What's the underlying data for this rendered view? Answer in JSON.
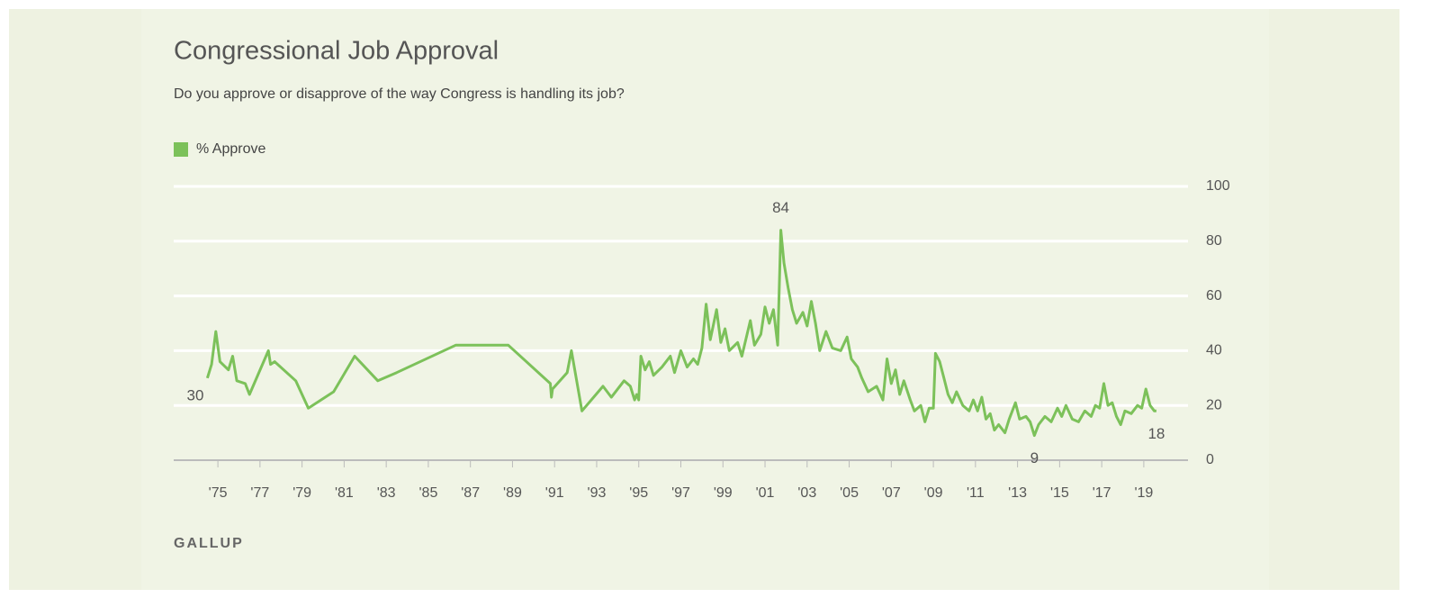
{
  "chart_data": {
    "type": "line",
    "title": "Congressional Job Approval",
    "subtitle": "Do you approve or disapprove of the way Congress is handling its job?",
    "source": "GALLUP",
    "legend": "top-left",
    "grid": true,
    "xlim": [
      1972.9,
      2021.1
    ],
    "ylim": [
      0,
      100
    ],
    "yticks": [
      0,
      20,
      40,
      60,
      80,
      100
    ],
    "xticks": [
      {
        "value": 1975,
        "label": "'75"
      },
      {
        "value": 1977,
        "label": "'77"
      },
      {
        "value": 1979,
        "label": "'79"
      },
      {
        "value": 1981,
        "label": "'81"
      },
      {
        "value": 1983,
        "label": "'83"
      },
      {
        "value": 1985,
        "label": "'85"
      },
      {
        "value": 1987,
        "label": "'87"
      },
      {
        "value": 1989,
        "label": "'89"
      },
      {
        "value": 1991,
        "label": "'91"
      },
      {
        "value": 1993,
        "label": "'93"
      },
      {
        "value": 1995,
        "label": "'95"
      },
      {
        "value": 1997,
        "label": "'97"
      },
      {
        "value": 1999,
        "label": "'99"
      },
      {
        "value": 2001,
        "label": "'01"
      },
      {
        "value": 2003,
        "label": "'03"
      },
      {
        "value": 2005,
        "label": "'05"
      },
      {
        "value": 2007,
        "label": "'07"
      },
      {
        "value": 2009,
        "label": "'09"
      },
      {
        "value": 2011,
        "label": "'11"
      },
      {
        "value": 2013,
        "label": "'13"
      },
      {
        "value": 2015,
        "label": "'15"
      },
      {
        "value": 2017,
        "label": "'17"
      },
      {
        "value": 2019,
        "label": "'19"
      }
    ],
    "x": [
      1974.5,
      1974.7,
      1974.9,
      1975.1,
      1975.5,
      1975.7,
      1975.9,
      1976.3,
      1976.5,
      1977.4,
      1977.5,
      1977.7,
      1978.7,
      1979.3,
      1980.5,
      1981.5,
      1982.6,
      1983.5,
      1986.3,
      1988.8,
      1990.8,
      1990.85,
      1990.9,
      1991.6,
      1991.8,
      1992.3,
      1993.3,
      1993.7,
      1994.3,
      1994.6,
      1994.8,
      1994.9,
      1995.0,
      1995.1,
      1995.3,
      1995.5,
      1995.7,
      1996.1,
      1996.5,
      1996.7,
      1997.0,
      1997.3,
      1997.6,
      1997.8,
      1998.0,
      1998.2,
      1998.4,
      1998.7,
      1998.9,
      1999.1,
      1999.3,
      1999.7,
      1999.9,
      2000.3,
      2000.5,
      2000.8,
      2001.0,
      2001.2,
      2001.4,
      2001.6,
      2001.75,
      2001.9,
      2002.1,
      2002.3,
      2002.5,
      2002.8,
      2003.0,
      2003.2,
      2003.4,
      2003.6,
      2003.9,
      2004.2,
      2004.6,
      2004.9,
      2005.1,
      2005.4,
      2005.6,
      2005.9,
      2006.3,
      2006.6,
      2006.8,
      2007.0,
      2007.2,
      2007.4,
      2007.6,
      2007.9,
      2008.1,
      2008.4,
      2008.6,
      2008.8,
      2009.0,
      2009.1,
      2009.3,
      2009.5,
      2009.7,
      2009.9,
      2010.1,
      2010.4,
      2010.7,
      2010.9,
      2011.1,
      2011.3,
      2011.5,
      2011.7,
      2011.9,
      2012.1,
      2012.4,
      2012.6,
      2012.9,
      2013.1,
      2013.4,
      2013.6,
      2013.8,
      2014.0,
      2014.3,
      2014.6,
      2014.9,
      2015.1,
      2015.3,
      2015.6,
      2015.9,
      2016.2,
      2016.5,
      2016.7,
      2016.9,
      2017.1,
      2017.3,
      2017.5,
      2017.7,
      2017.9,
      2018.1,
      2018.4,
      2018.7,
      2018.9,
      2019.1,
      2019.3,
      2019.5,
      2019.6
    ],
    "series": [
      {
        "name": "% Approve",
        "color": "#7cc15a",
        "values": [
          30,
          35,
          47,
          36,
          33,
          38,
          29,
          28,
          24,
          40,
          35,
          36,
          29,
          19,
          25,
          38,
          29,
          32,
          42,
          42,
          28,
          23,
          26,
          32,
          40,
          18,
          27,
          23,
          29,
          27,
          22,
          24,
          22,
          38,
          33,
          36,
          31,
          34,
          38,
          32,
          40,
          34,
          37,
          35,
          41,
          57,
          44,
          55,
          43,
          48,
          40,
          43,
          38,
          51,
          42,
          46,
          56,
          50,
          55,
          42,
          84,
          72,
          63,
          55,
          50,
          54,
          49,
          58,
          50,
          40,
          47,
          41,
          40,
          45,
          37,
          34,
          30,
          25,
          27,
          22,
          37,
          28,
          33,
          24,
          29,
          22,
          18,
          20,
          14,
          19,
          19,
          39,
          36,
          30,
          24,
          21,
          25,
          20,
          18,
          22,
          18,
          23,
          15,
          17,
          11,
          13,
          10,
          15,
          21,
          15,
          16,
          14,
          9,
          13,
          16,
          14,
          19,
          16,
          20,
          15,
          14,
          18,
          16,
          20,
          19,
          28,
          20,
          21,
          16,
          13,
          18,
          17,
          20,
          19,
          26,
          20,
          18,
          18
        ]
      }
    ],
    "annotations": [
      {
        "x": 1974.5,
        "y": 30
      },
      {
        "x": 2001.75,
        "y": 84
      },
      {
        "x": 2013.8,
        "y": 9
      },
      {
        "x": 2019.6,
        "y": 18
      }
    ]
  }
}
